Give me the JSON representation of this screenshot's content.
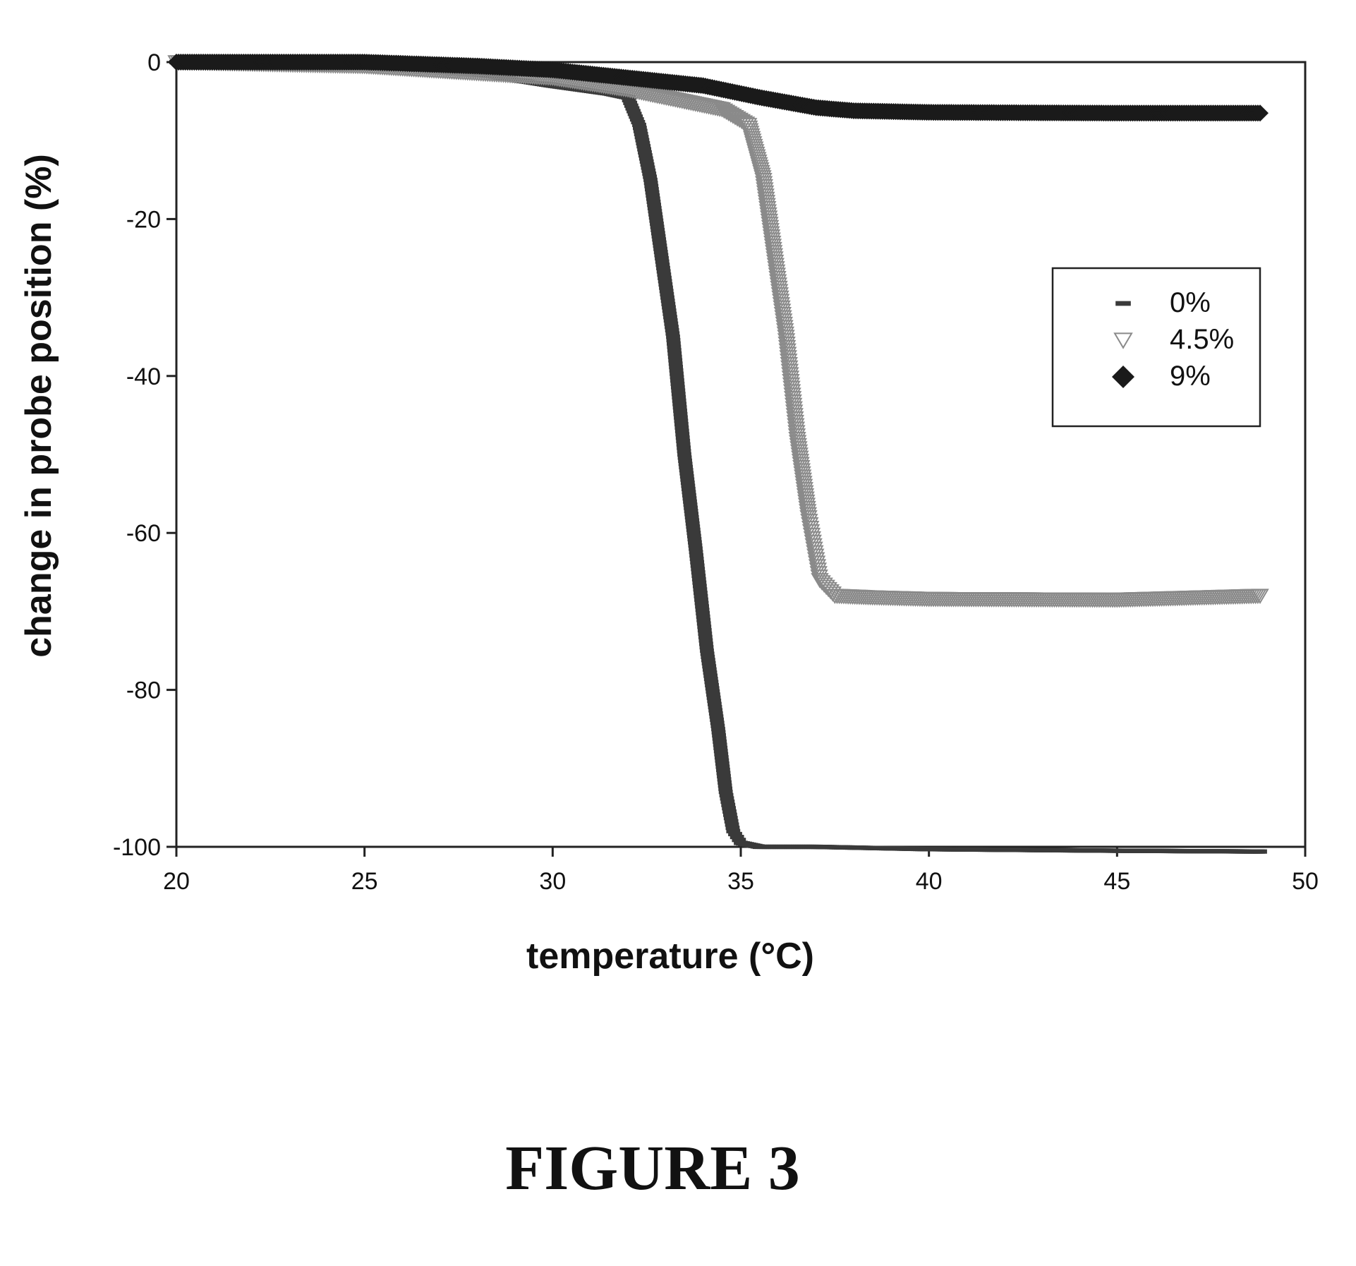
{
  "chart_data": {
    "type": "scatter",
    "xlabel": "temperature (°C)",
    "ylabel": "change in probe position (%)",
    "xlim": [
      20,
      50
    ],
    "ylim": [
      -100,
      0
    ],
    "xticks": [
      20,
      25,
      30,
      35,
      40,
      45,
      50
    ],
    "yticks": [
      0,
      -20,
      -40,
      -60,
      -80,
      -100
    ],
    "grid": false,
    "legend_position": "right",
    "series": [
      {
        "name": "0%",
        "marker": "dash",
        "color": "#3a3a3a",
        "x": [
          20.0,
          25.0,
          28.0,
          30.0,
          31.5,
          32.0,
          32.3,
          32.6,
          32.9,
          33.2,
          33.5,
          33.8,
          34.1,
          34.4,
          34.6,
          34.8,
          35.0,
          35.5,
          37.0,
          40.0,
          45.0,
          48.8
        ],
        "y": [
          0,
          -0.5,
          -1.5,
          -3,
          -4,
          -4.5,
          -8,
          -15,
          -25,
          -35,
          -50,
          -62,
          -75,
          -85,
          -93,
          -98,
          -99.5,
          -100,
          -100,
          -100.3,
          -100.5,
          -100.6
        ]
      },
      {
        "name": "4.5%",
        "marker": "triangle-down",
        "color": "#8a8a8a",
        "x": [
          20.0,
          25.0,
          30.0,
          32.0,
          33.5,
          34.5,
          35.2,
          35.6,
          35.9,
          36.2,
          36.5,
          36.8,
          37.1,
          37.5,
          38.5,
          40.0,
          45.0,
          48.8
        ],
        "y": [
          0,
          -0.5,
          -2,
          -3.5,
          -5,
          -6,
          -8,
          -15,
          -25,
          -35,
          -48,
          -58,
          -66,
          -68,
          -68.2,
          -68.4,
          -68.5,
          -68
        ],
        "note_visible": false
      },
      {
        "name": "9%",
        "marker": "diamond",
        "color": "#1a1a1a",
        "x": [
          20.0,
          25.0,
          28.0,
          30.0,
          32.0,
          34.0,
          35.5,
          37.0,
          38.0,
          40.0,
          45.0,
          48.8
        ],
        "y": [
          0,
          0,
          -0.5,
          -1,
          -2,
          -3,
          -4.5,
          -5.8,
          -6.2,
          -6.4,
          -6.5,
          -6.5
        ]
      }
    ]
  },
  "caption": "FIGURE 3"
}
